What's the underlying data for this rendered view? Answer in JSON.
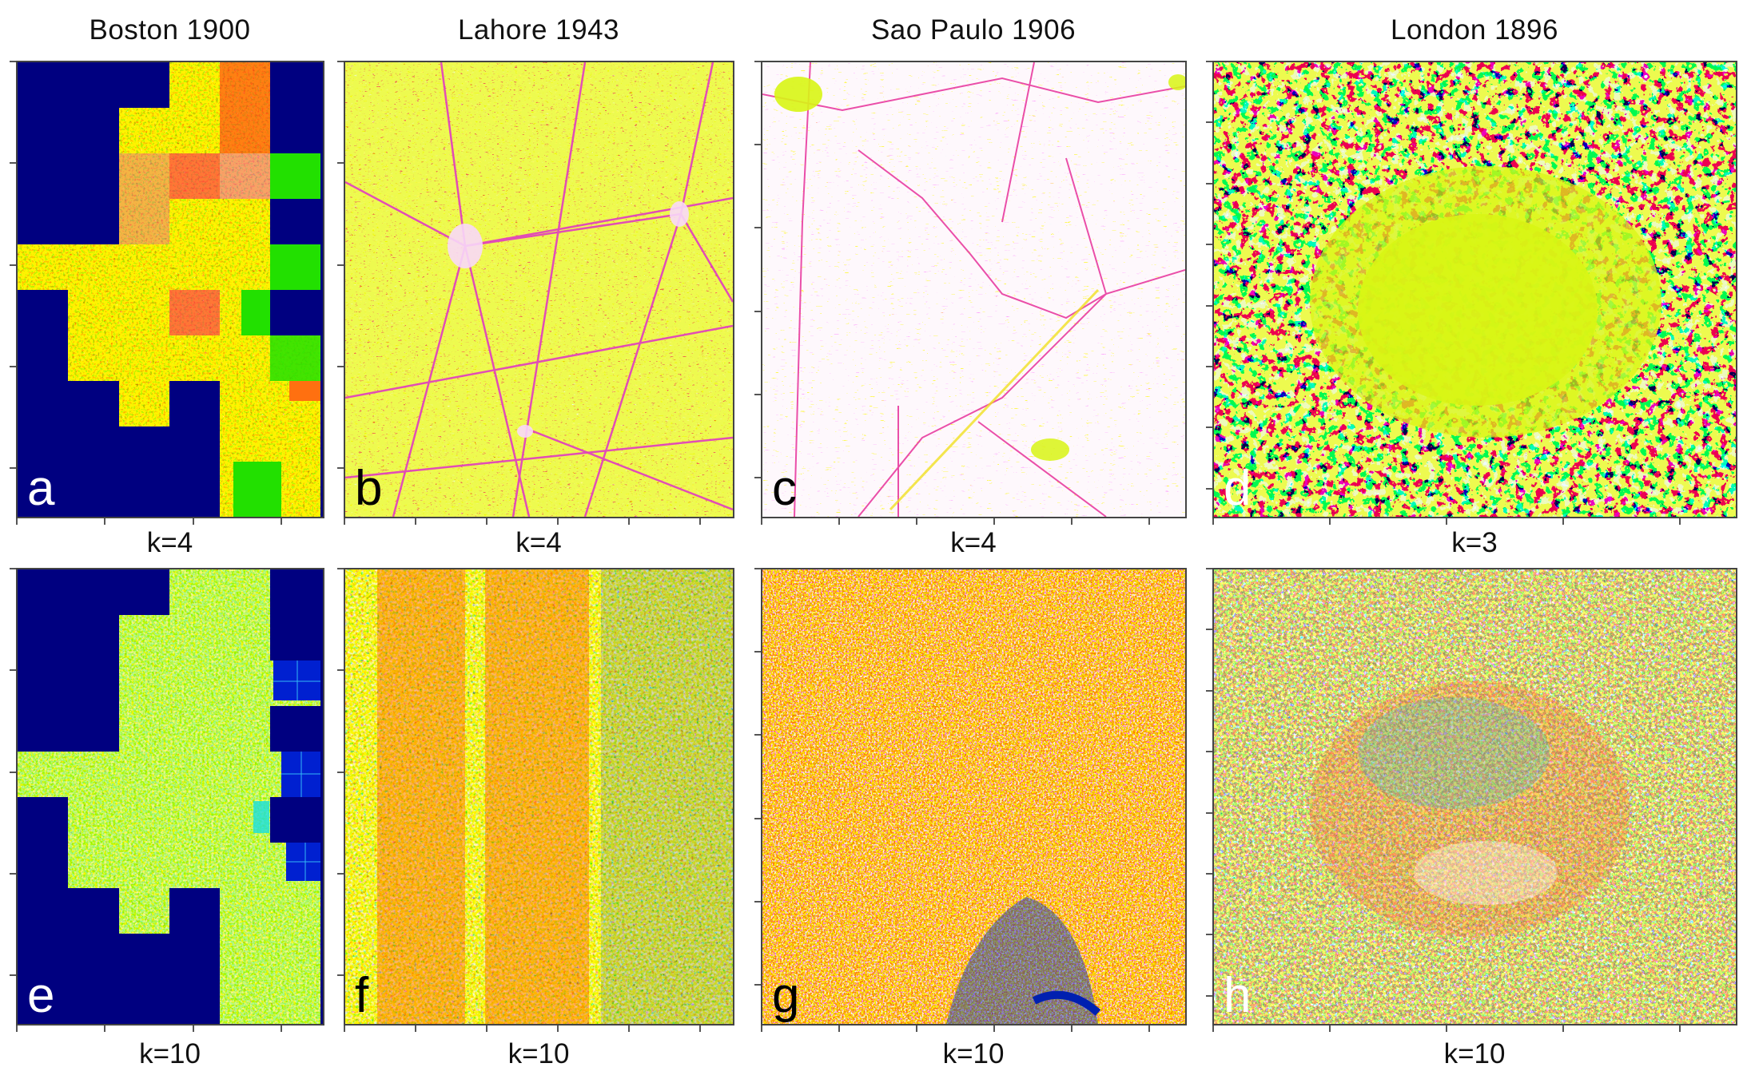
{
  "figure": {
    "columns": [
      {
        "title": "Boston 1900",
        "top_panel": {
          "letter": "a",
          "k_label": "k=4"
        },
        "bottom_panel": {
          "letter": "e",
          "k_label": "k=10"
        }
      },
      {
        "title": "Lahore 1943",
        "top_panel": {
          "letter": "b",
          "k_label": "k=4"
        },
        "bottom_panel": {
          "letter": "f",
          "k_label": "k=10"
        }
      },
      {
        "title": "Sao Paulo 1906",
        "top_panel": {
          "letter": "c",
          "k_label": "k=4"
        },
        "bottom_panel": {
          "letter": "g",
          "k_label": "k=10"
        }
      },
      {
        "title": "London 1896",
        "top_panel": {
          "letter": "d",
          "k_label": "k=3"
        },
        "bottom_panel": {
          "letter": "h",
          "k_label": "k=10"
        }
      }
    ]
  },
  "palette": {
    "navy": "#000080",
    "yellow_green": "#d8f514",
    "yellow": "#f5e600",
    "orange": "#ff8c00",
    "red": "#ff2020",
    "magenta": "#e83ce8",
    "pale_pink": "#fdf0fb",
    "green": "#22e000",
    "cyan": "#18c8e0",
    "blue": "#0030d0",
    "white": "#ffffff"
  },
  "boston_tiles": {
    "cols": 6,
    "rows": 9,
    "grid": [
      [
        "N",
        "N",
        "N",
        "O",
        "R",
        "N"
      ],
      [
        "N",
        "N",
        "O",
        "O",
        "R",
        "N"
      ],
      [
        "N",
        "N",
        "M",
        "MR",
        "MW",
        "G"
      ],
      [
        "N",
        "N",
        "M",
        "Y",
        "Y",
        "N"
      ],
      [
        "Y",
        "M",
        "Y",
        "Y",
        "Y",
        "G"
      ],
      [
        "N",
        "O",
        "O",
        "MR",
        "Y",
        "N"
      ],
      [
        "N",
        "O",
        "Y",
        "O",
        "O",
        "G"
      ],
      [
        "N",
        "N",
        "O",
        "N",
        "Y",
        "O"
      ],
      [
        "N",
        "N",
        "N",
        "N",
        "Y",
        "Y"
      ]
    ]
  }
}
